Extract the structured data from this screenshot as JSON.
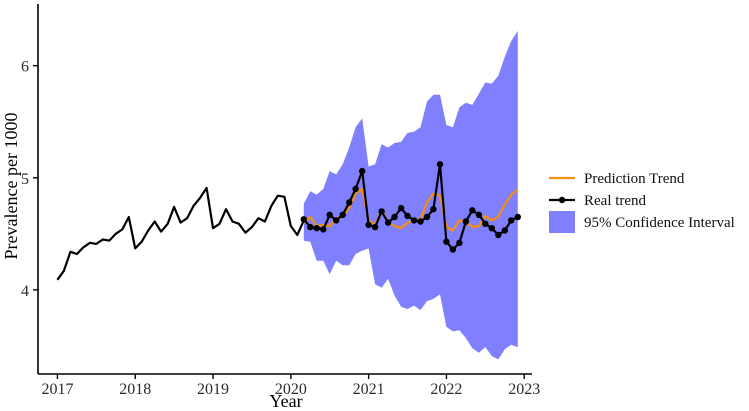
{
  "chart_data": {
    "type": "line",
    "xlabel": "Year",
    "ylabel": "Prevalence per 1000",
    "xlim": [
      2016.75,
      2023.1
    ],
    "ylim": [
      3.25,
      6.55
    ],
    "x_ticks": [
      2017,
      2018,
      2019,
      2020,
      2021,
      2022,
      2023
    ],
    "y_ticks": [
      4,
      5,
      6
    ],
    "grid": false,
    "legend_position": "right",
    "colors": {
      "prediction": "#f0900e",
      "real": "#000000",
      "ci": "#8080ff",
      "axis": "#000000"
    },
    "history": {
      "x": [
        2017.0,
        2017.083,
        2017.167,
        2017.25,
        2017.333,
        2017.417,
        2017.5,
        2017.583,
        2017.667,
        2017.75,
        2017.833,
        2017.917,
        2018.0,
        2018.083,
        2018.167,
        2018.25,
        2018.333,
        2018.417,
        2018.5,
        2018.583,
        2018.667,
        2018.75,
        2018.833,
        2018.917,
        2019.0,
        2019.083,
        2019.167,
        2019.25,
        2019.333,
        2019.417,
        2019.5,
        2019.583,
        2019.667,
        2019.75,
        2019.833,
        2019.917,
        2020.0,
        2020.083,
        2020.167
      ],
      "y": [
        4.09,
        4.17,
        4.34,
        4.32,
        4.38,
        4.42,
        4.41,
        4.45,
        4.44,
        4.5,
        4.54,
        4.65,
        4.37,
        4.43,
        4.53,
        4.61,
        4.52,
        4.59,
        4.74,
        4.6,
        4.64,
        4.75,
        4.82,
        4.91,
        4.55,
        4.59,
        4.72,
        4.61,
        4.59,
        4.51,
        4.56,
        4.64,
        4.61,
        4.75,
        4.84,
        4.83,
        4.57,
        4.49,
        4.62
      ]
    },
    "series": [
      {
        "name": "Prediction Trend",
        "x": [
          2020.167,
          2020.25,
          2020.333,
          2020.417,
          2020.5,
          2020.583,
          2020.667,
          2020.75,
          2020.833,
          2020.917,
          2021.0,
          2021.083,
          2021.167,
          2021.25,
          2021.333,
          2021.417,
          2021.5,
          2021.583,
          2021.667,
          2021.75,
          2021.833,
          2021.917,
          2022.0,
          2022.083,
          2022.167,
          2022.25,
          2022.333,
          2022.417,
          2022.5,
          2022.583,
          2022.667,
          2022.75,
          2022.833,
          2022.917
        ],
        "y": [
          4.6,
          4.65,
          4.57,
          4.58,
          4.57,
          4.64,
          4.66,
          4.73,
          4.86,
          4.9,
          4.62,
          4.58,
          4.71,
          4.6,
          4.57,
          4.55,
          4.6,
          4.62,
          4.63,
          4.78,
          4.86,
          4.84,
          4.56,
          4.53,
          4.62,
          4.61,
          4.56,
          4.57,
          4.66,
          4.62,
          4.65,
          4.76,
          4.85,
          4.89
        ]
      },
      {
        "name": "Real trend",
        "x": [
          2020.167,
          2020.25,
          2020.333,
          2020.417,
          2020.5,
          2020.583,
          2020.667,
          2020.75,
          2020.833,
          2020.917,
          2021.0,
          2021.083,
          2021.167,
          2021.25,
          2021.333,
          2021.417,
          2021.5,
          2021.583,
          2021.667,
          2021.75,
          2021.833,
          2021.917,
          2022.0,
          2022.083,
          2022.167,
          2022.25,
          2022.333,
          2022.417,
          2022.5,
          2022.583,
          2022.667,
          2022.75,
          2022.833,
          2022.917
        ],
        "y": [
          4.63,
          4.56,
          4.55,
          4.54,
          4.67,
          4.62,
          4.67,
          4.78,
          4.9,
          5.06,
          4.58,
          4.56,
          4.7,
          4.6,
          4.65,
          4.73,
          4.66,
          4.62,
          4.61,
          4.65,
          4.72,
          5.12,
          4.43,
          4.36,
          4.42,
          4.61,
          4.71,
          4.67,
          4.59,
          4.55,
          4.49,
          4.53,
          4.62,
          4.65
        ]
      },
      {
        "name": "95% Confidence Interval",
        "x": [
          2020.167,
          2020.25,
          2020.333,
          2020.417,
          2020.5,
          2020.583,
          2020.667,
          2020.75,
          2020.833,
          2020.917,
          2021.0,
          2021.083,
          2021.167,
          2021.25,
          2021.333,
          2021.417,
          2021.5,
          2021.583,
          2021.667,
          2021.75,
          2021.833,
          2021.917,
          2022.0,
          2022.083,
          2022.167,
          2022.25,
          2022.333,
          2022.417,
          2022.5,
          2022.583,
          2022.667,
          2022.75,
          2022.833,
          2022.917
        ],
        "upper": [
          4.77,
          4.88,
          4.85,
          4.9,
          5.06,
          5.03,
          5.12,
          5.27,
          5.45,
          5.53,
          5.1,
          5.12,
          5.3,
          5.27,
          5.31,
          5.32,
          5.4,
          5.41,
          5.45,
          5.68,
          5.74,
          5.74,
          5.47,
          5.45,
          5.63,
          5.67,
          5.65,
          5.75,
          5.85,
          5.84,
          5.91,
          6.08,
          6.22,
          6.31
        ],
        "lower": [
          4.44,
          4.43,
          4.26,
          4.26,
          4.14,
          4.26,
          4.22,
          4.22,
          4.32,
          4.35,
          4.37,
          4.05,
          4.02,
          4.1,
          3.95,
          3.85,
          3.83,
          3.86,
          3.82,
          3.9,
          3.92,
          3.96,
          3.67,
          3.63,
          3.64,
          3.57,
          3.48,
          3.44,
          3.49,
          3.41,
          3.38,
          3.47,
          3.51,
          3.49
        ]
      }
    ]
  }
}
